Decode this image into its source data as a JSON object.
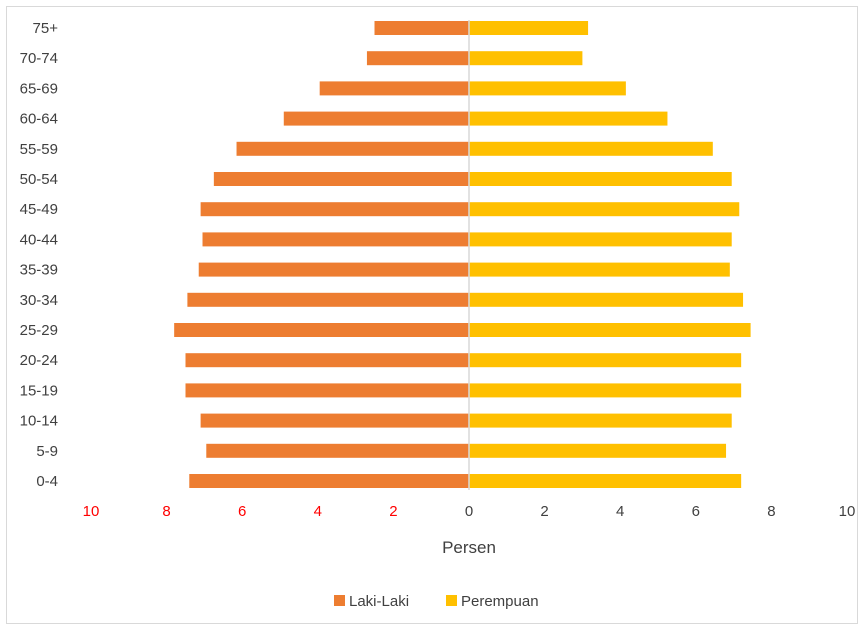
{
  "chart_data": {
    "type": "bar",
    "orientation": "horizontal",
    "title": "",
    "xlabel": "Persen",
    "ylabel": "",
    "categories": [
      "0-4",
      "5-9",
      "10-14",
      "15-19",
      "20-24",
      "25-29",
      "30-34",
      "35-39",
      "40-44",
      "45-49",
      "50-54",
      "55-59",
      "60-64",
      "65-69",
      "70-74",
      "75+"
    ],
    "series": [
      {
        "name": "Laki-Laki",
        "color": "#ED7D31",
        "side": "left",
        "values": [
          7.4,
          6.95,
          7.1,
          7.5,
          7.5,
          7.8,
          7.45,
          7.15,
          7.05,
          7.1,
          6.75,
          6.15,
          4.9,
          3.95,
          2.7,
          2.5
        ]
      },
      {
        "name": "Perempuan",
        "color": "#FFC000",
        "side": "right",
        "values": [
          7.2,
          6.8,
          6.95,
          7.2,
          7.2,
          7.45,
          7.25,
          6.9,
          6.95,
          7.15,
          6.95,
          6.45,
          5.25,
          4.15,
          3.0,
          3.15
        ]
      }
    ],
    "xlim": [
      -10,
      10
    ],
    "x_ticks": [
      {
        "label": "10",
        "color": "#FF0000"
      },
      {
        "label": "8",
        "color": "#FF0000"
      },
      {
        "label": "6",
        "color": "#FF0000"
      },
      {
        "label": "4",
        "color": "#FF0000"
      },
      {
        "label": "2",
        "color": "#FF0000"
      },
      {
        "label": "0",
        "color": "#404040"
      },
      {
        "label": "2",
        "color": "#404040"
      },
      {
        "label": "4",
        "color": "#404040"
      },
      {
        "label": "6",
        "color": "#404040"
      },
      {
        "label": "8",
        "color": "#404040"
      },
      {
        "label": "10",
        "color": "#404040"
      }
    ],
    "grid": false,
    "legend": "bottom"
  }
}
